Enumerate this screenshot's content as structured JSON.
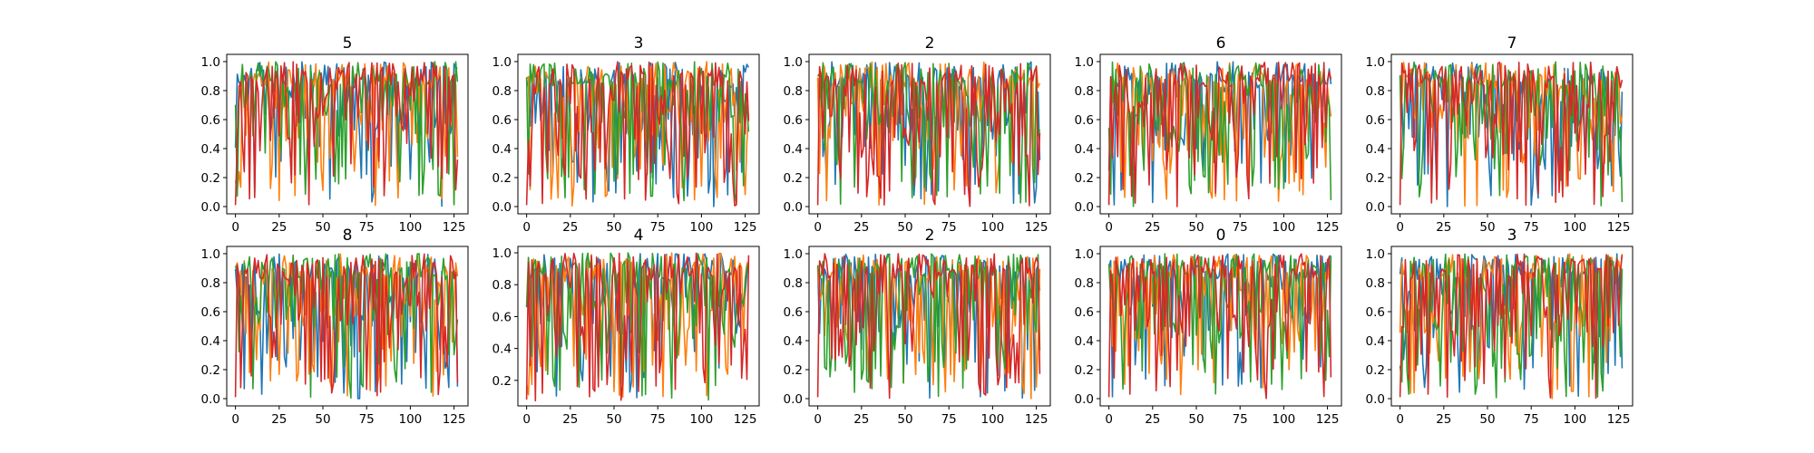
{
  "chart_data": {
    "type": "line",
    "layout": "2 rows x 5 columns",
    "series_colors": [
      "#1f77b4",
      "#ff7f0e",
      "#2ca02c",
      "#d62728"
    ],
    "xlim": [
      -5,
      133
    ],
    "x_ticks": [
      "0",
      "25",
      "50",
      "75",
      "100",
      "125"
    ],
    "grid": false,
    "legend": "none",
    "panels": [
      {
        "title": "5",
        "ylim": [
          -0.05,
          1.05
        ],
        "y_ticks": [
          "0.0",
          "0.2",
          "0.4",
          "0.6",
          "0.8",
          "1.0"
        ],
        "seed": 11,
        "min_y": 0.0
      },
      {
        "title": "3",
        "ylim": [
          -0.05,
          1.05
        ],
        "y_ticks": [
          "0.0",
          "0.2",
          "0.4",
          "0.6",
          "0.8",
          "1.0"
        ],
        "seed": 23,
        "min_y": 0.0
      },
      {
        "title": "2",
        "ylim": [
          -0.05,
          1.05
        ],
        "y_ticks": [
          "0.0",
          "0.2",
          "0.4",
          "0.6",
          "0.8",
          "1.0"
        ],
        "seed": 37,
        "min_y": 0.0
      },
      {
        "title": "6",
        "ylim": [
          -0.05,
          1.05
        ],
        "y_ticks": [
          "0.0",
          "0.2",
          "0.4",
          "0.6",
          "0.8",
          "1.0"
        ],
        "seed": 41,
        "min_y": 0.0
      },
      {
        "title": "7",
        "ylim": [
          -0.05,
          1.05
        ],
        "y_ticks": [
          "0.0",
          "0.2",
          "0.4",
          "0.6",
          "0.8",
          "1.0"
        ],
        "seed": 53,
        "min_y": 0.0
      },
      {
        "title": "8",
        "ylim": [
          -0.05,
          1.05
        ],
        "y_ticks": [
          "0.0",
          "0.2",
          "0.4",
          "0.6",
          "0.8",
          "1.0"
        ],
        "seed": 67,
        "min_y": 0.0
      },
      {
        "title": "4",
        "ylim": [
          0.04,
          1.04
        ],
        "y_ticks": [
          "0.2",
          "0.4",
          "0.6",
          "0.8",
          "1.0"
        ],
        "seed": 79,
        "min_y": 0.07
      },
      {
        "title": "2",
        "ylim": [
          -0.05,
          1.05
        ],
        "y_ticks": [
          "0.0",
          "0.2",
          "0.4",
          "0.6",
          "0.8",
          "1.0"
        ],
        "seed": 83,
        "min_y": 0.0
      },
      {
        "title": "0",
        "ylim": [
          -0.05,
          1.05
        ],
        "y_ticks": [
          "0.0",
          "0.2",
          "0.4",
          "0.6",
          "0.8",
          "1.0"
        ],
        "seed": 97,
        "min_y": 0.0
      },
      {
        "title": "3",
        "ylim": [
          -0.05,
          1.05
        ],
        "y_ticks": [
          "0.0",
          "0.2",
          "0.4",
          "0.6",
          "0.8",
          "1.0"
        ],
        "seed": 101,
        "min_y": 0.0
      }
    ],
    "points_per_series": 128
  }
}
